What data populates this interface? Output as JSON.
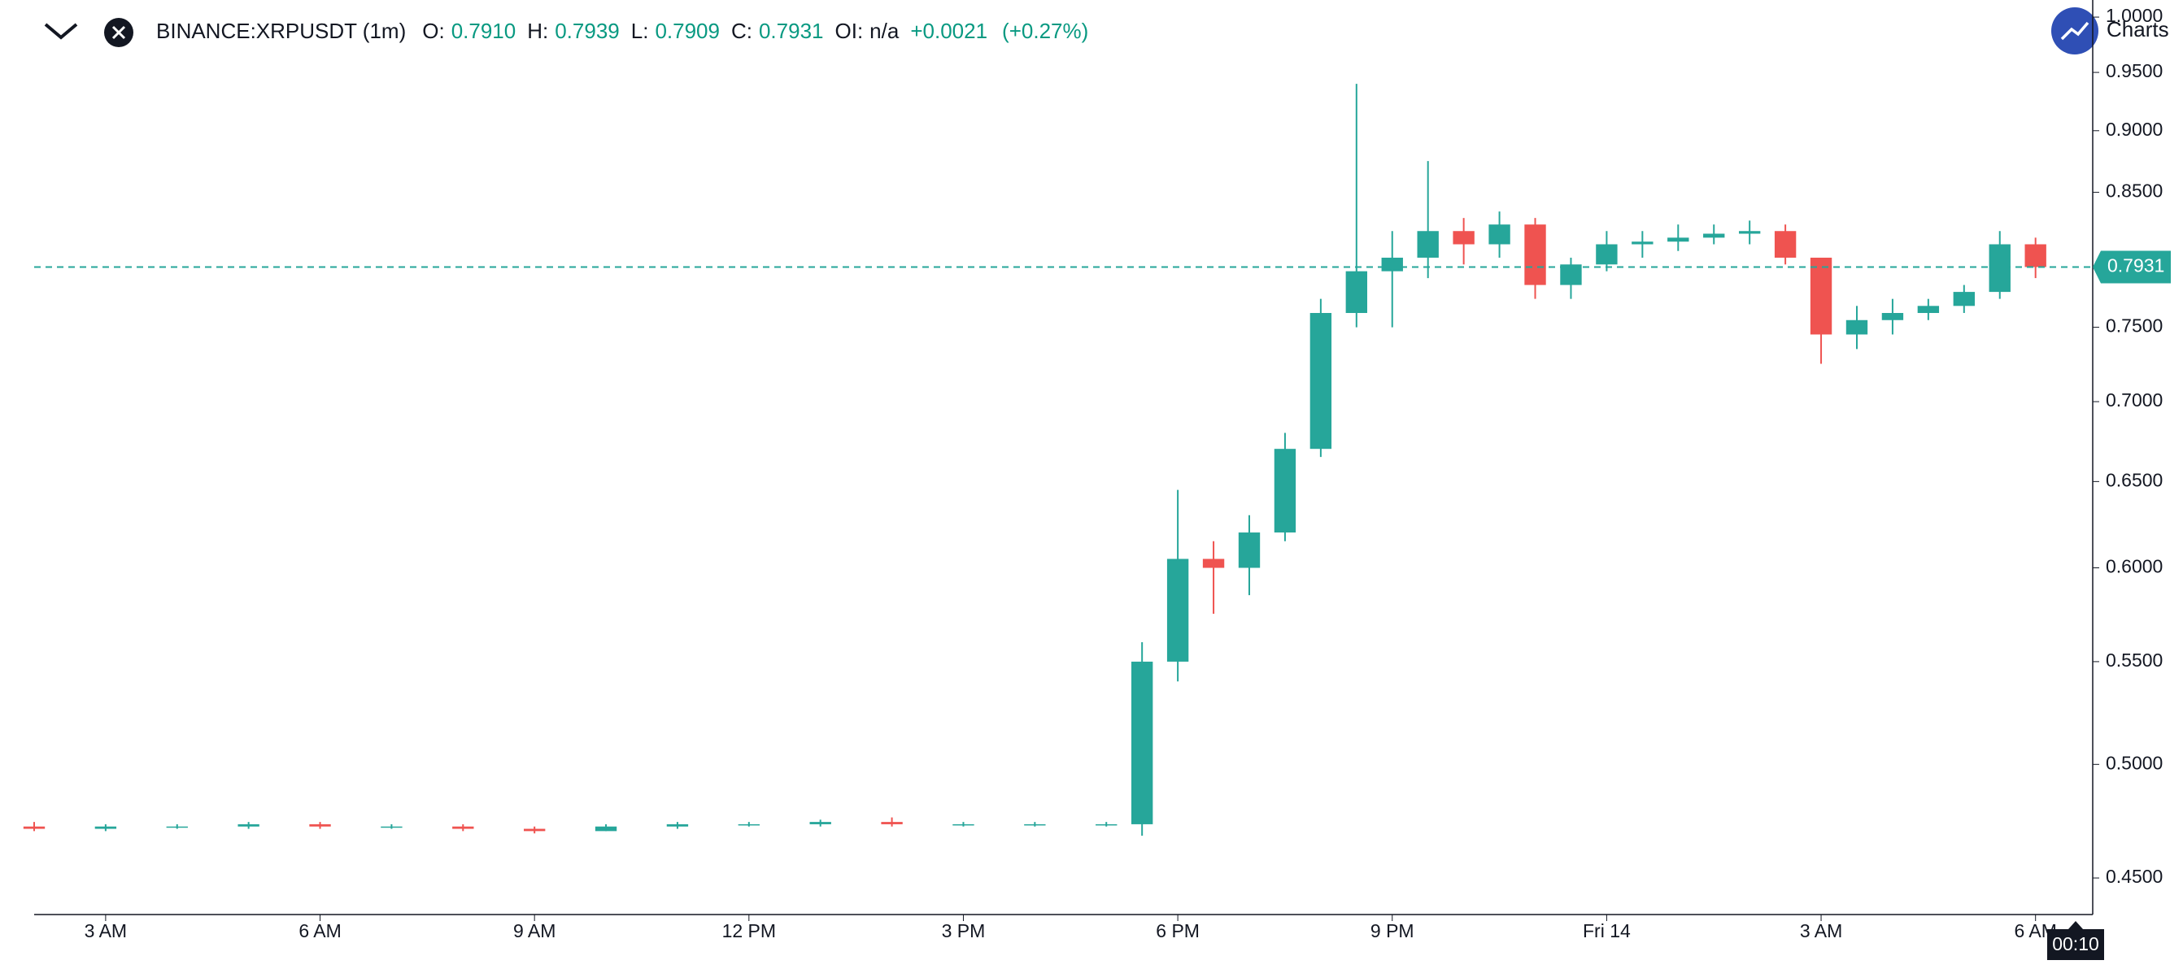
{
  "chart_data": {
    "type": "candlestick",
    "header": {
      "symbol": "BINANCE:XRPUSDT (1m)",
      "fields": [
        {
          "label": "O:",
          "value": "0.7910"
        },
        {
          "label": "H:",
          "value": "0.7939"
        },
        {
          "label": "L:",
          "value": "0.7909"
        },
        {
          "label": "C:",
          "value": "0.7931"
        },
        {
          "label": "OI:",
          "value": "n/a"
        }
      ],
      "change": "+0.0021",
      "change_pct": "(+0.27%)"
    },
    "logo_text": "Charts",
    "x": [
      2,
      3,
      4,
      5,
      6,
      7,
      8,
      9,
      10,
      11,
      12,
      13,
      14,
      15,
      16,
      17,
      17.5,
      18,
      18.5,
      19,
      19.5,
      20,
      20.5,
      21,
      21.5,
      22,
      22.5,
      23,
      23.5,
      24,
      24.5,
      25,
      25.5,
      26,
      26.5,
      27,
      27.5,
      28,
      28.5,
      29,
      29.5,
      30
    ],
    "open": [
      0.472,
      0.471,
      0.472,
      0.472,
      0.473,
      0.472,
      0.472,
      0.471,
      0.47,
      0.472,
      0.473,
      0.473,
      0.474,
      0.473,
      0.473,
      0.473,
      0.473,
      0.55,
      0.605,
      0.6,
      0.62,
      0.67,
      0.76,
      0.79,
      0.8,
      0.82,
      0.81,
      0.825,
      0.78,
      0.795,
      0.81,
      0.812,
      0.815,
      0.818,
      0.82,
      0.8,
      0.745,
      0.755,
      0.76,
      0.765,
      0.775,
      0.81
    ],
    "high": [
      0.474,
      0.473,
      0.473,
      0.474,
      0.474,
      0.473,
      0.473,
      0.472,
      0.473,
      0.474,
      0.474,
      0.475,
      0.476,
      0.474,
      0.474,
      0.474,
      0.56,
      0.645,
      0.615,
      0.63,
      0.68,
      0.77,
      0.94,
      0.82,
      0.875,
      0.83,
      0.835,
      0.83,
      0.8,
      0.82,
      0.82,
      0.825,
      0.825,
      0.828,
      0.825,
      0.8,
      0.765,
      0.77,
      0.77,
      0.78,
      0.82,
      0.815
    ],
    "low": [
      0.47,
      0.47,
      0.471,
      0.471,
      0.471,
      0.471,
      0.47,
      0.469,
      0.47,
      0.471,
      0.472,
      0.472,
      0.472,
      0.472,
      0.472,
      0.472,
      0.468,
      0.54,
      0.575,
      0.585,
      0.615,
      0.665,
      0.75,
      0.75,
      0.785,
      0.795,
      0.8,
      0.77,
      0.77,
      0.79,
      0.8,
      0.805,
      0.81,
      0.81,
      0.795,
      0.725,
      0.735,
      0.745,
      0.755,
      0.76,
      0.77,
      0.785
    ],
    "close": [
      0.471,
      0.472,
      0.472,
      0.473,
      0.472,
      0.472,
      0.471,
      0.47,
      0.472,
      0.473,
      0.473,
      0.474,
      0.473,
      0.473,
      0.473,
      0.473,
      0.55,
      0.605,
      0.6,
      0.62,
      0.67,
      0.76,
      0.79,
      0.8,
      0.82,
      0.81,
      0.825,
      0.78,
      0.795,
      0.81,
      0.812,
      0.815,
      0.818,
      0.82,
      0.8,
      0.745,
      0.755,
      0.76,
      0.765,
      0.775,
      0.81,
      0.7931
    ],
    "up_color": "#26a69a",
    "down_color": "#ef5350",
    "log_scale": true,
    "grid": false,
    "xlim": [
      2,
      30.8
    ],
    "xticks": [
      {
        "value": 3,
        "label": "3 AM"
      },
      {
        "value": 6,
        "label": "6 AM"
      },
      {
        "value": 9,
        "label": "9 AM"
      },
      {
        "value": 12,
        "label": "12 PM"
      },
      {
        "value": 15,
        "label": "3 PM"
      },
      {
        "value": 18,
        "label": "6 PM"
      },
      {
        "value": 21,
        "label": "9 PM"
      },
      {
        "value": 24,
        "label": "Fri 14"
      },
      {
        "value": 27,
        "label": "3 AM"
      },
      {
        "value": 30,
        "label": "6 AM"
      }
    ],
    "ylim": [
      0.435,
      1.016
    ],
    "yticks": [
      {
        "value": 0.45,
        "label": "0.4500"
      },
      {
        "value": 0.5,
        "label": "0.5000"
      },
      {
        "value": 0.55,
        "label": "0.5500"
      },
      {
        "value": 0.6,
        "label": "0.6000"
      },
      {
        "value": 0.65,
        "label": "0.6500"
      },
      {
        "value": 0.7,
        "label": "0.7000"
      },
      {
        "value": 0.75,
        "label": "0.7500"
      },
      {
        "value": 0.85,
        "label": "0.8500"
      },
      {
        "value": 0.9,
        "label": "0.9000"
      },
      {
        "value": 0.95,
        "label": "0.9500"
      },
      {
        "value": 1.0,
        "label": "1.0000"
      }
    ],
    "last_price": {
      "value": 0.7931,
      "label": "0.7931"
    },
    "time_label": "00:10"
  }
}
